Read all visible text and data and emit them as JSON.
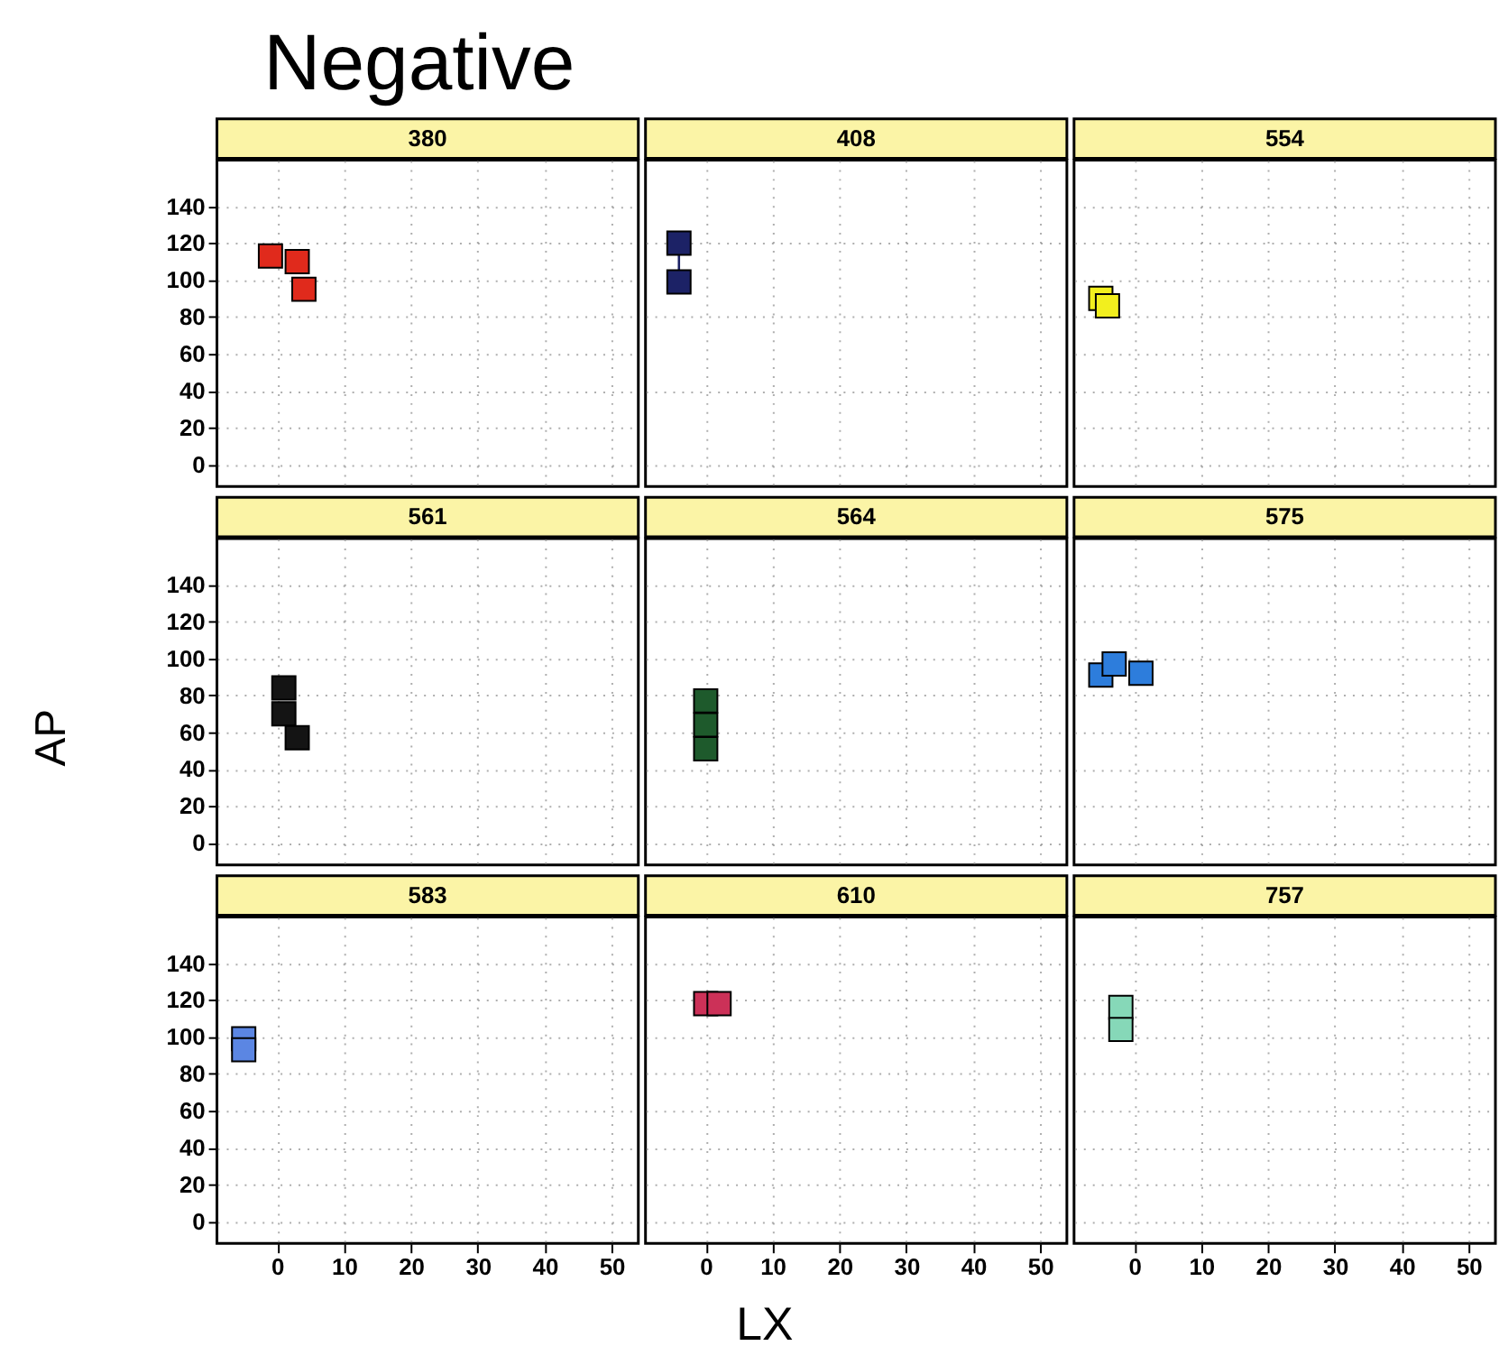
{
  "chart_data": [
    {
      "type": "scatter",
      "title": "Negative",
      "xlim": [
        -9,
        54
      ],
      "ylim": [
        -12,
        165
      ],
      "xticks": [
        0,
        10,
        20,
        30,
        40,
        50
      ],
      "yticks": [
        0,
        20,
        40,
        60,
        80,
        100,
        120,
        140
      ],
      "tick_labels": "y",
      "grid": true,
      "marker": "square",
      "series": [
        {
          "name": "380",
          "color": "#e02a1c",
          "x": [
            -1,
            3,
            4
          ],
          "values": [
            113,
            110,
            95
          ]
        }
      ]
    },
    {
      "type": "line",
      "xlim": [
        -9,
        54
      ],
      "ylim": [
        -12,
        165
      ],
      "xticks": [
        0,
        10,
        20,
        30,
        40,
        50
      ],
      "yticks": [
        0,
        20,
        40,
        60,
        80,
        100,
        120,
        140
      ],
      "tick_labels": false,
      "grid": true,
      "marker": "square",
      "line_style": "solid",
      "series": [
        {
          "name": "408",
          "color": "#1c2266",
          "x": [
            -4,
            -4
          ],
          "values": [
            120,
            99
          ]
        }
      ]
    },
    {
      "type": "scatter",
      "xlim": [
        -9,
        54
      ],
      "ylim": [
        -12,
        165
      ],
      "xticks": [
        0,
        10,
        20,
        30,
        40,
        50
      ],
      "yticks": [
        0,
        20,
        40,
        60,
        80,
        100,
        120,
        140
      ],
      "tick_labels": false,
      "grid": true,
      "marker": "square",
      "series": [
        {
          "name": "554",
          "color": "#f2ef1e",
          "x": [
            -5,
            -4
          ],
          "values": [
            90,
            86
          ]
        }
      ]
    },
    {
      "type": "scatter",
      "ylabel": "AP",
      "xlim": [
        -9,
        54
      ],
      "ylim": [
        -12,
        165
      ],
      "xticks": [
        0,
        10,
        20,
        30,
        40,
        50
      ],
      "yticks": [
        0,
        20,
        40,
        60,
        80,
        100,
        120,
        140
      ],
      "tick_labels": "y",
      "grid": true,
      "marker": "square",
      "series": [
        {
          "name": "561",
          "color": "#141414",
          "x": [
            1,
            1,
            3
          ],
          "values": [
            84,
            70,
            57
          ]
        }
      ]
    },
    {
      "type": "scatter",
      "xlim": [
        -9,
        54
      ],
      "ylim": [
        -12,
        165
      ],
      "xticks": [
        0,
        10,
        20,
        30,
        40,
        50
      ],
      "yticks": [
        0,
        20,
        40,
        60,
        80,
        100,
        120,
        140
      ],
      "tick_labels": false,
      "grid": true,
      "marker": "square",
      "series": [
        {
          "name": "564",
          "color": "#1e5a2c",
          "x": [
            0,
            0,
            0
          ],
          "values": [
            77,
            64,
            51
          ]
        }
      ]
    },
    {
      "type": "scatter",
      "xlim": [
        -9,
        54
      ],
      "ylim": [
        -12,
        165
      ],
      "xticks": [
        0,
        10,
        20,
        30,
        40,
        50
      ],
      "yticks": [
        0,
        20,
        40,
        60,
        80,
        100,
        120,
        140
      ],
      "tick_labels": false,
      "grid": true,
      "marker": "square",
      "series": [
        {
          "name": "575",
          "color": "#2d7ddc",
          "x": [
            -5,
            -3,
            1
          ],
          "values": [
            91,
            97,
            92
          ]
        }
      ]
    },
    {
      "type": "scatter",
      "xlim": [
        -9,
        54
      ],
      "ylim": [
        -12,
        165
      ],
      "xticks": [
        0,
        10,
        20,
        30,
        40,
        50
      ],
      "yticks": [
        0,
        20,
        40,
        60,
        80,
        100,
        120,
        140
      ],
      "grid": true,
      "marker": "square",
      "series": [
        {
          "name": "583",
          "color": "#5b86e3",
          "x": [
            -5,
            -5
          ],
          "values": [
            99,
            93
          ]
        }
      ]
    },
    {
      "type": "scatter",
      "xlabel": "LX",
      "xlim": [
        -9,
        54
      ],
      "ylim": [
        -12,
        165
      ],
      "xticks": [
        0,
        10,
        20,
        30,
        40,
        50
      ],
      "yticks": [
        0,
        20,
        40,
        60,
        80,
        100,
        120,
        140
      ],
      "tick_labels": "x",
      "grid": true,
      "marker": "square",
      "series": [
        {
          "name": "610",
          "color": "#cc3158",
          "x": [
            0,
            2
          ],
          "values": [
            118,
            118
          ]
        }
      ]
    },
    {
      "type": "scatter",
      "xlim": [
        -9,
        54
      ],
      "ylim": [
        -12,
        165
      ],
      "xticks": [
        0,
        10,
        20,
        30,
        40,
        50
      ],
      "yticks": [
        0,
        20,
        40,
        60,
        80,
        100,
        120,
        140
      ],
      "tick_labels": "x",
      "grid": true,
      "marker": "square",
      "series": [
        {
          "name": "757",
          "color": "#86d8b8",
          "x": [
            -2,
            -2
          ],
          "values": [
            116,
            104
          ]
        }
      ]
    }
  ]
}
